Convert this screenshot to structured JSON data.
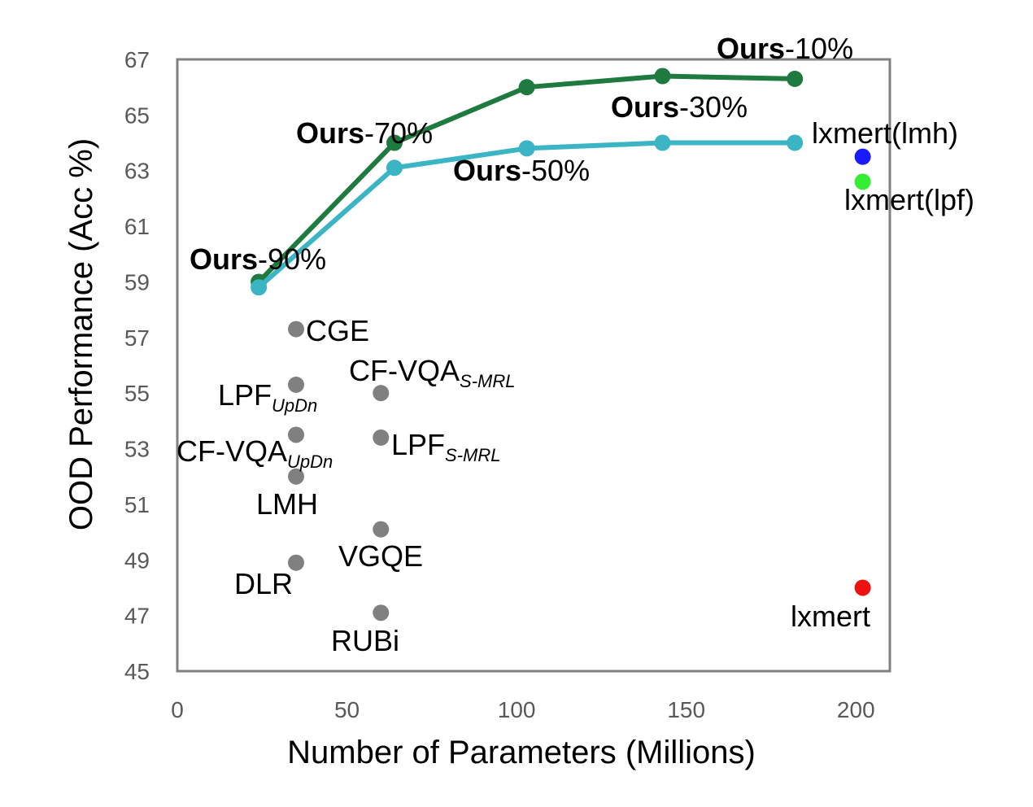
{
  "chart_data": {
    "type": "scatter",
    "xlabel": "Number of Parameters (Millions)",
    "ylabel": "OOD Performance (Acc %)",
    "xlim": [
      0,
      210
    ],
    "ylim": [
      45,
      67
    ],
    "x_ticks": [
      "0",
      "50",
      "100",
      "150",
      "200"
    ],
    "y_ticks": [
      "45",
      "47",
      "49",
      "51",
      "53",
      "55",
      "57",
      "59",
      "61",
      "63",
      "65",
      "67"
    ],
    "grid": false,
    "series": [
      {
        "name": "",
        "color": "#1e7a3f",
        "mode": "line",
        "points": [
          {
            "x": 24,
            "y": 59.0,
            "label": ""
          },
          {
            "x": 64,
            "y": 64.0,
            "label": ""
          },
          {
            "x": 103,
            "y": 66.0,
            "label": ""
          },
          {
            "x": 143,
            "y": 66.4,
            "label": ""
          },
          {
            "x": 182,
            "y": 66.3,
            "label": ""
          }
        ]
      },
      {
        "name": "",
        "color": "#3bb4c4",
        "mode": "line",
        "points": [
          {
            "x": 24,
            "y": 58.8,
            "label": ""
          },
          {
            "x": 64,
            "y": 63.1,
            "label": ""
          },
          {
            "x": 103,
            "y": 63.8,
            "label": ""
          },
          {
            "x": 143,
            "y": 64.0,
            "label": ""
          },
          {
            "x": 182,
            "y": 64.0,
            "label": ""
          }
        ]
      },
      {
        "name": "",
        "color": "#808080",
        "mode": "points",
        "points": [
          {
            "x": 35,
            "y": 57.3,
            "label": "CGE"
          },
          {
            "x": 35,
            "y": 55.3,
            "label": "LPF"
          },
          {
            "x": 35,
            "y": 53.5,
            "label": "CF-VQA"
          },
          {
            "x": 35,
            "y": 52.0,
            "label": "LMH"
          },
          {
            "x": 35,
            "y": 48.9,
            "label": "DLR"
          },
          {
            "x": 60,
            "y": 55.0,
            "label": "CF-VQA"
          },
          {
            "x": 60,
            "y": 53.4,
            "label": "LPF"
          },
          {
            "x": 60,
            "y": 50.1,
            "label": "VGQE"
          },
          {
            "x": 60,
            "y": 47.1,
            "label": "RUBi"
          }
        ]
      },
      {
        "name": "",
        "color": "#1a1aff",
        "mode": "points",
        "points": [
          {
            "x": 202,
            "y": 63.5,
            "label": "lxmert(lmh)"
          }
        ]
      },
      {
        "name": "",
        "color": "#33ee33",
        "mode": "points",
        "points": [
          {
            "x": 202,
            "y": 62.6,
            "label": "lxmert(lpf)"
          }
        ]
      },
      {
        "name": "",
        "color": "#ee1111",
        "mode": "points",
        "points": [
          {
            "x": 202,
            "y": 48.0,
            "label": "lxmert"
          }
        ]
      }
    ],
    "labels": [
      {
        "id": "ours10",
        "bold": "Ours",
        "rest": "-10%",
        "sub": ""
      },
      {
        "id": "ours30",
        "bold": "Ours",
        "rest": "-30%",
        "sub": ""
      },
      {
        "id": "ours50",
        "bold": "Ours",
        "rest": "-50%",
        "sub": ""
      },
      {
        "id": "ours70",
        "bold": "Ours",
        "rest": "-70%",
        "sub": ""
      },
      {
        "id": "ours90",
        "bold": "Ours",
        "rest": "-90%",
        "sub": ""
      },
      {
        "id": "cge",
        "bold": "",
        "rest": "CGE",
        "sub": ""
      },
      {
        "id": "lpf-updn",
        "bold": "",
        "rest": "LPF",
        "sub": "UpDn"
      },
      {
        "id": "cfvqa-updn",
        "bold": "",
        "rest": "CF-VQA",
        "sub": "UpDn"
      },
      {
        "id": "lmh",
        "bold": "",
        "rest": "LMH",
        "sub": ""
      },
      {
        "id": "dlr",
        "bold": "",
        "rest": "DLR",
        "sub": ""
      },
      {
        "id": "cfvqa-smrl",
        "bold": "",
        "rest": "CF-VQA",
        "sub": "S-MRL"
      },
      {
        "id": "lpf-smrl",
        "bold": "",
        "rest": "LPF",
        "sub": "S-MRL"
      },
      {
        "id": "vgqe",
        "bold": "",
        "rest": "VGQE",
        "sub": ""
      },
      {
        "id": "rubi",
        "bold": "",
        "rest": "RUBi",
        "sub": ""
      },
      {
        "id": "lxmert-lmh",
        "bold": "",
        "rest": "lxmert(lmh)",
        "sub": ""
      },
      {
        "id": "lxmert-lpf",
        "bold": "",
        "rest": "lxmert(lpf)",
        "sub": ""
      },
      {
        "id": "lxmert",
        "bold": "",
        "rest": "lxmert",
        "sub": ""
      }
    ]
  }
}
